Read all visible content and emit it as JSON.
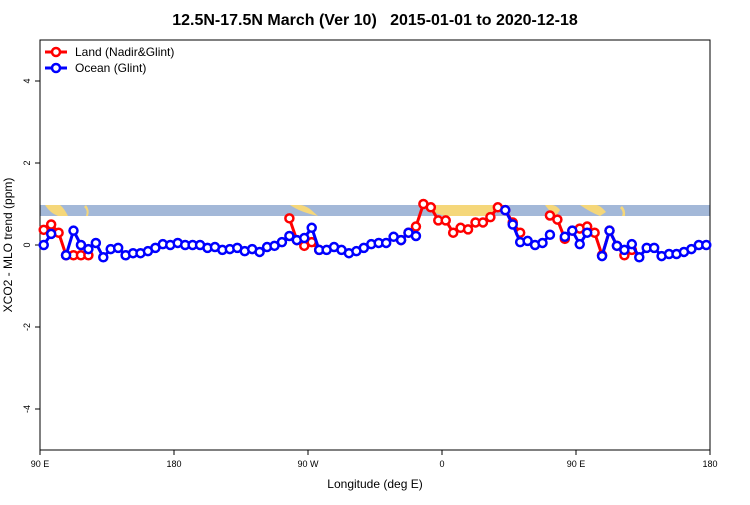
{
  "chart_data": {
    "type": "line",
    "title": "12.5N-17.5N March (Ver 10)   2015-01-01 to 2020-12-18",
    "xlabel": "Longitude (deg E)",
    "ylabel": "XCO2 - MLO trend (ppm)",
    "xlim": [
      90,
      540
    ],
    "ylim": [
      -5,
      5
    ],
    "xticks": [
      {
        "value": 90,
        "label": "90 E"
      },
      180,
      {
        "value": 270,
        "label": "90 W"
      },
      {
        "value": 360,
        "label": "0"
      },
      {
        "value": 450,
        "label": "90 E"
      },
      {
        "value": 540,
        "label": "180"
      }
    ],
    "yticks": [
      -4,
      -2,
      0,
      2,
      4
    ],
    "legend": "top-left",
    "x": [
      92.5,
      97.5,
      102.5,
      107.5,
      112.5,
      117.5,
      122.5,
      127.5,
      132.5,
      137.5,
      142.5,
      147.5,
      152.5,
      157.5,
      162.5,
      167.5,
      172.5,
      177.5,
      182.5,
      187.5,
      192.5,
      197.5,
      202.5,
      207.5,
      212.5,
      217.5,
      222.5,
      227.5,
      232.5,
      237.5,
      242.5,
      247.5,
      252.5,
      257.5,
      262.5,
      267.5,
      272.5,
      277.5,
      282.5,
      287.5,
      292.5,
      297.5,
      302.5,
      307.5,
      312.5,
      317.5,
      322.5,
      327.5,
      332.5,
      337.5,
      342.5,
      347.5,
      352.5,
      357.5,
      362.5,
      367.5,
      372.5,
      377.5,
      382.5,
      387.5,
      392.5,
      397.5,
      402.5,
      407.5,
      412.5,
      417.5,
      422.5,
      427.5,
      432.5,
      437.5,
      442.5,
      447.5,
      452.5,
      457.5,
      462.5,
      467.5,
      472.5,
      477.5,
      482.5,
      487.5,
      492.5,
      497.5,
      502.5,
      507.5,
      512.5,
      517.5,
      522.5,
      527.5,
      532.5,
      537.5
    ],
    "series": [
      {
        "name": "Land (Nadir&Glint)",
        "color": "#ff0000",
        "values": [
          0.37,
          0.5,
          0.3,
          -0.25,
          -0.25,
          -0.25,
          -0.25,
          null,
          null,
          null,
          null,
          null,
          null,
          null,
          null,
          null,
          null,
          null,
          null,
          null,
          null,
          null,
          null,
          null,
          null,
          null,
          null,
          null,
          null,
          null,
          null,
          null,
          null,
          0.65,
          0.12,
          -0.02,
          0.07,
          -0.12,
          null,
          null,
          null,
          null,
          null,
          null,
          null,
          null,
          null,
          null,
          0.12,
          0.3,
          0.45,
          1.0,
          0.92,
          0.6,
          0.6,
          0.3,
          0.42,
          0.38,
          0.55,
          0.55,
          0.68,
          0.92,
          0.85,
          0.55,
          0.3,
          null,
          null,
          null,
          0.72,
          0.62,
          0.15,
          0.35,
          0.4,
          0.45,
          0.3,
          -0.25,
          0.35,
          -0.02,
          -0.25,
          -0.12,
          null,
          null,
          null,
          null,
          null,
          null,
          null,
          null,
          null,
          null
        ]
      },
      {
        "name": "Ocean (Glint)",
        "color": "#0000ff",
        "values": [
          0.0,
          0.27,
          null,
          -0.25,
          0.35,
          0.0,
          -0.1,
          0.05,
          -0.3,
          -0.1,
          -0.07,
          -0.25,
          -0.2,
          -0.2,
          -0.15,
          -0.07,
          0.02,
          0.0,
          0.05,
          0.0,
          0.0,
          0.0,
          -0.07,
          -0.05,
          -0.12,
          -0.1,
          -0.07,
          -0.15,
          -0.1,
          -0.17,
          -0.05,
          -0.02,
          0.07,
          0.22,
          0.12,
          0.17,
          0.42,
          -0.12,
          -0.12,
          -0.05,
          -0.12,
          -0.2,
          -0.15,
          -0.07,
          0.02,
          0.05,
          0.05,
          0.2,
          0.12,
          0.3,
          0.22,
          null,
          null,
          null,
          null,
          null,
          null,
          null,
          null,
          null,
          null,
          null,
          0.85,
          0.5,
          0.07,
          0.1,
          0.0,
          0.05,
          0.25,
          null,
          0.2,
          0.35,
          0.02,
          0.3,
          null,
          -0.27,
          0.35,
          -0.02,
          -0.12,
          0.02,
          -0.3,
          -0.07,
          -0.07,
          -0.27,
          -0.22,
          -0.22,
          -0.17,
          -0.1,
          0.0,
          0.0
        ]
      }
    ]
  }
}
